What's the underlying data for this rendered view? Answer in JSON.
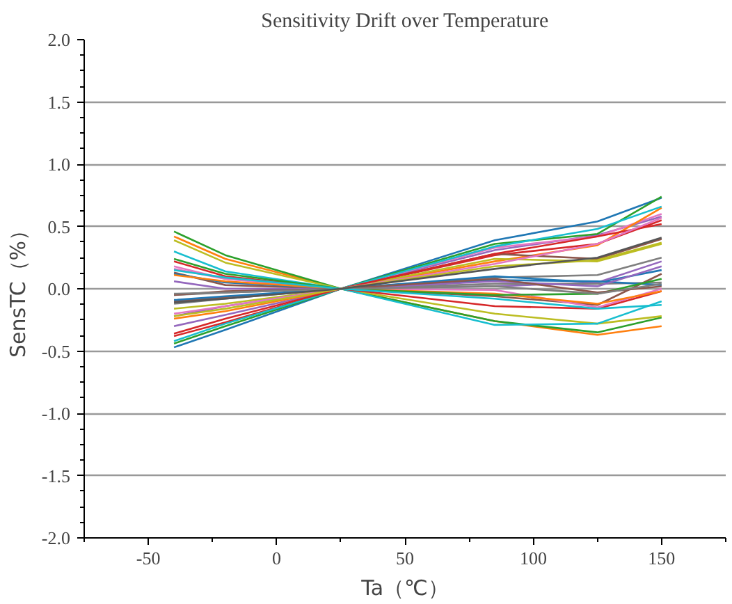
{
  "chart_data": {
    "type": "line",
    "title": "Sensitivity Drift over Temperature",
    "xlabel": "Ta（℃）",
    "ylabel": "SensTC（%）",
    "x": [
      -40,
      -20,
      25,
      85,
      125,
      150
    ],
    "xlim": [
      -75,
      175
    ],
    "xticks": [
      -50,
      0,
      50,
      100,
      150
    ],
    "ylim": [
      -2.0,
      2.0
    ],
    "yticks": [
      {
        "value": -2,
        "label": "-2.0"
      },
      -1.5,
      {
        "value": -1,
        "label": "-1.0"
      },
      -0.5,
      {
        "value": 0,
        "label": "0.0"
      },
      0.5,
      {
        "value": 1,
        "label": "1.0"
      },
      1.5,
      {
        "value": 2,
        "label": "2.0"
      }
    ],
    "grid": "y",
    "marker": "none",
    "line_style": "solid",
    "series": [
      {
        "color": "#1f77b4",
        "values": [
          -0.47,
          -0.33,
          0,
          0.39,
          0.54,
          0.73
        ]
      },
      {
        "color": "#ff7f0e",
        "values": [
          0.42,
          0.24,
          0,
          -0.26,
          -0.37,
          -0.3
        ]
      },
      {
        "color": "#2ca02c",
        "values": [
          0.46,
          0.27,
          0,
          -0.26,
          -0.35,
          -0.23
        ]
      },
      {
        "color": "#d62728",
        "values": [
          -0.38,
          -0.27,
          0,
          0.27,
          0.36,
          0.55
        ]
      },
      {
        "color": "#9467bd",
        "values": [
          -0.3,
          -0.21,
          0,
          0.31,
          0.43,
          0.58
        ]
      },
      {
        "color": "#8c564b",
        "values": [
          0.13,
          0.03,
          0,
          -0.06,
          -0.13,
          0.12
        ]
      },
      {
        "color": "#e377c2",
        "values": [
          0.16,
          0.08,
          0,
          0.33,
          0.42,
          0.6
        ]
      },
      {
        "color": "#7f7f7f",
        "values": [
          -0.05,
          -0.03,
          0,
          0.09,
          0.11,
          0.25
        ]
      },
      {
        "color": "#bcbd22",
        "values": [
          0.39,
          0.21,
          0,
          -0.2,
          -0.28,
          -0.22
        ]
      },
      {
        "color": "#17becf",
        "values": [
          0.3,
          0.14,
          0,
          -0.29,
          -0.28,
          -0.1
        ]
      },
      {
        "color": "#1f77b4",
        "values": [
          0.12,
          0.05,
          0,
          0.1,
          0.05,
          0.15
        ]
      },
      {
        "color": "#ff7f0e",
        "values": [
          -0.24,
          -0.18,
          0,
          0.22,
          0.35,
          0.65
        ]
      },
      {
        "color": "#2ca02c",
        "values": [
          -0.44,
          -0.3,
          0,
          0.36,
          0.44,
          0.74
        ]
      },
      {
        "color": "#d62728",
        "values": [
          0.22,
          0.1,
          0,
          -0.14,
          -0.16,
          -0.02
        ]
      },
      {
        "color": "#9467bd",
        "values": [
          0.06,
          0.0,
          0,
          0.02,
          0.05,
          0.22
        ]
      },
      {
        "color": "#8c564b",
        "values": [
          -0.1,
          -0.07,
          0,
          0.28,
          0.24,
          0.4
        ]
      },
      {
        "color": "#e377c2",
        "values": [
          0.18,
          0.08,
          0,
          -0.01,
          -0.15,
          0.0
        ]
      },
      {
        "color": "#7f7f7f",
        "values": [
          -0.12,
          -0.08,
          0,
          0.04,
          0.04,
          0.05
        ]
      },
      {
        "color": "#bcbd22",
        "values": [
          -0.16,
          -0.12,
          0,
          0.24,
          0.22,
          0.36
        ]
      },
      {
        "color": "#17becf",
        "values": [
          -0.42,
          -0.28,
          0,
          0.34,
          0.48,
          0.66
        ]
      },
      {
        "color": "#1f77b4",
        "values": [
          -0.09,
          -0.06,
          0,
          0.07,
          0.06,
          0.03
        ]
      },
      {
        "color": "#ff7f0e",
        "values": [
          0.11,
          0.06,
          0,
          -0.04,
          -0.12,
          -0.02
        ]
      },
      {
        "color": "#2ca02c",
        "values": [
          0.24,
          0.12,
          0,
          -0.05,
          -0.04,
          0.08
        ]
      },
      {
        "color": "#d62728",
        "values": [
          -0.36,
          -0.24,
          0,
          0.28,
          0.42,
          0.52
        ]
      },
      {
        "color": "#9467bd",
        "values": [
          -0.22,
          -0.14,
          0,
          0.06,
          0.02,
          0.18
        ]
      },
      {
        "color": "#8c564b",
        "values": [
          -0.05,
          -0.02,
          0,
          0.08,
          -0.03,
          0.02
        ]
      },
      {
        "color": "#e377c2",
        "values": [
          -0.2,
          -0.14,
          0,
          0.2,
          0.36,
          0.57
        ]
      },
      {
        "color": "#7f7f7f",
        "values": [
          -0.04,
          -0.03,
          0,
          0.02,
          -0.04,
          0.04
        ]
      },
      {
        "color": "#bcbd22",
        "values": [
          -0.22,
          -0.16,
          0,
          0.18,
          0.23,
          0.37
        ]
      },
      {
        "color": "#17becf",
        "values": [
          0.15,
          0.09,
          0,
          -0.08,
          -0.16,
          -0.13
        ]
      },
      {
        "color": "#555555",
        "values": [
          -0.11,
          -0.08,
          0,
          0.16,
          0.25,
          0.41
        ]
      }
    ]
  }
}
